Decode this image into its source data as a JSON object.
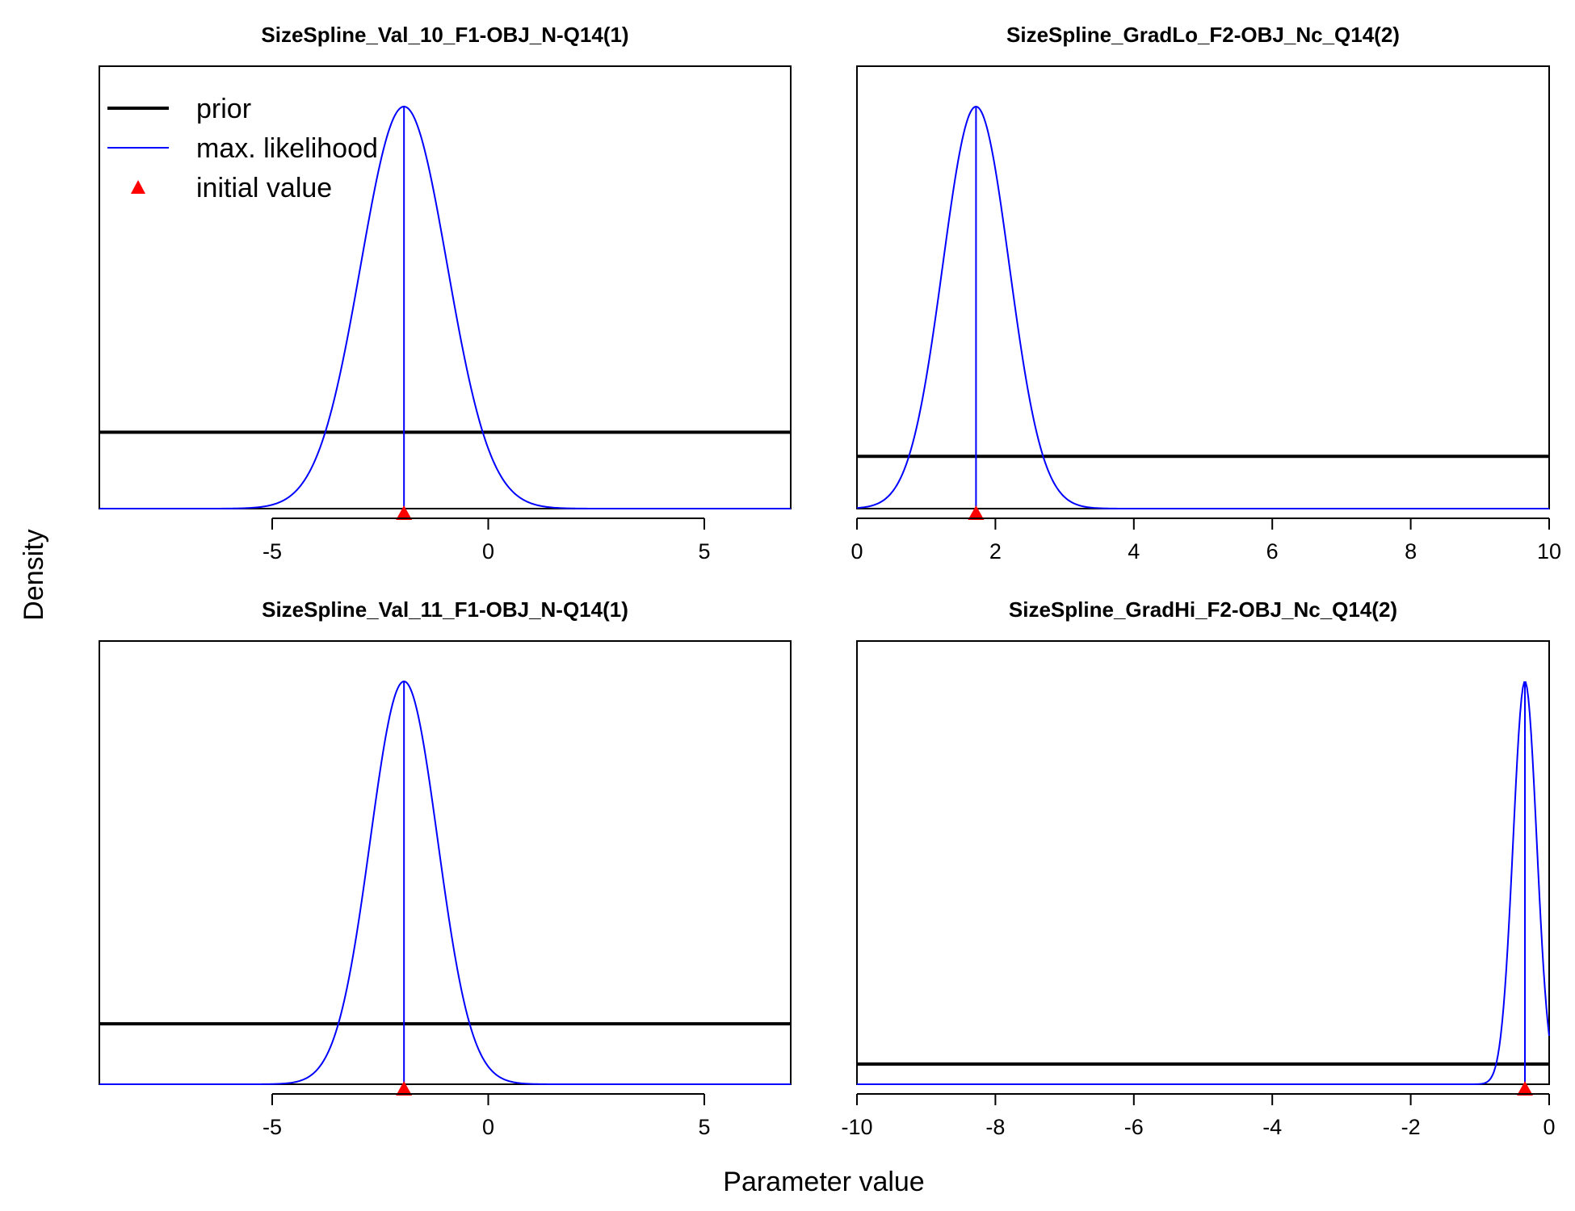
{
  "figure": {
    "xlabel": "Parameter value",
    "ylabel": "Density",
    "legend": {
      "placement": "top-left",
      "panel": 0,
      "entries": [
        {
          "label": "prior",
          "style": "thick-line",
          "color": "#000000"
        },
        {
          "label": "max. likelihood",
          "style": "thin-line",
          "color": "#0000ff"
        },
        {
          "label": "initial value",
          "style": "triangle",
          "color": "#ff0000"
        }
      ]
    },
    "colors": {
      "prior": "#000000",
      "likelihood": "#0000ff",
      "initial": "#ff0000"
    }
  },
  "chart_data": [
    {
      "type": "line",
      "title": "SizeSpline_Val_10_F1-OBJ_N-Q14(1)",
      "xlim": [
        -9,
        7
      ],
      "x_ticks": [
        -5,
        0,
        5
      ],
      "x_tick_labels": [
        "-5",
        "0",
        "5"
      ],
      "series": [
        {
          "name": "prior",
          "kind": "uniform",
          "relative_height": 0.19
        },
        {
          "name": "max. likelihood",
          "kind": "normal",
          "mean": -1.95,
          "sd": 1.0
        },
        {
          "name": "initial value",
          "kind": "point",
          "x": -1.95
        }
      ]
    },
    {
      "type": "line",
      "title": "SizeSpline_GradLo_F2-OBJ_Nc_Q14(2)",
      "xlim": [
        0,
        10
      ],
      "x_ticks": [
        0,
        2,
        4,
        6,
        8,
        10
      ],
      "x_tick_labels": [
        "0",
        "2",
        "4",
        "6",
        "8",
        "10"
      ],
      "series": [
        {
          "name": "prior",
          "kind": "uniform",
          "relative_height": 0.13
        },
        {
          "name": "max. likelihood",
          "kind": "normal",
          "mean": 1.72,
          "sd": 0.48
        },
        {
          "name": "initial value",
          "kind": "point",
          "x": 1.72
        }
      ]
    },
    {
      "type": "line",
      "title": "SizeSpline_Val_11_F1-OBJ_N-Q14(1)",
      "xlim": [
        -9,
        7
      ],
      "x_ticks": [
        -5,
        0,
        5
      ],
      "x_tick_labels": [
        "-5",
        "0",
        "5"
      ],
      "series": [
        {
          "name": "prior",
          "kind": "uniform",
          "relative_height": 0.15
        },
        {
          "name": "max. likelihood",
          "kind": "normal",
          "mean": -1.95,
          "sd": 0.78
        },
        {
          "name": "initial value",
          "kind": "point",
          "x": -1.95
        }
      ]
    },
    {
      "type": "line",
      "title": "SizeSpline_GradHi_F2-OBJ_Nc_Q14(2)",
      "xlim": [
        -10,
        0
      ],
      "x_ticks": [
        -10,
        -8,
        -6,
        -4,
        -2,
        0
      ],
      "x_tick_labels": [
        "-10",
        "-8",
        "-6",
        "-4",
        "-2",
        "0"
      ],
      "series": [
        {
          "name": "prior",
          "kind": "uniform",
          "relative_height": 0.05
        },
        {
          "name": "max. likelihood",
          "kind": "normal",
          "mean": -0.35,
          "sd": 0.17
        },
        {
          "name": "initial value",
          "kind": "point",
          "x": -0.35
        }
      ]
    }
  ]
}
